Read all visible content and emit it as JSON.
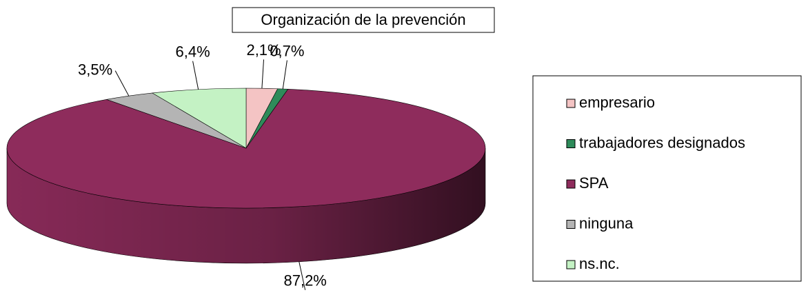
{
  "chart_data": {
    "type": "pie",
    "title": "Organización de la prevención",
    "categories": [
      "empresario",
      "trabajadores designados",
      "SPA",
      "ninguna",
      "ns.nc."
    ],
    "values": [
      2.1,
      0.7,
      87.2,
      3.5,
      6.4
    ],
    "value_labels": [
      "2,1%",
      "0,7%",
      "87,2%",
      "3,5%",
      "6,4%"
    ],
    "colors": [
      "#f4c4c4",
      "#2e8b5a",
      "#8e2c5c",
      "#b4b4b4",
      "#c4f2c4"
    ],
    "legend": "right"
  }
}
